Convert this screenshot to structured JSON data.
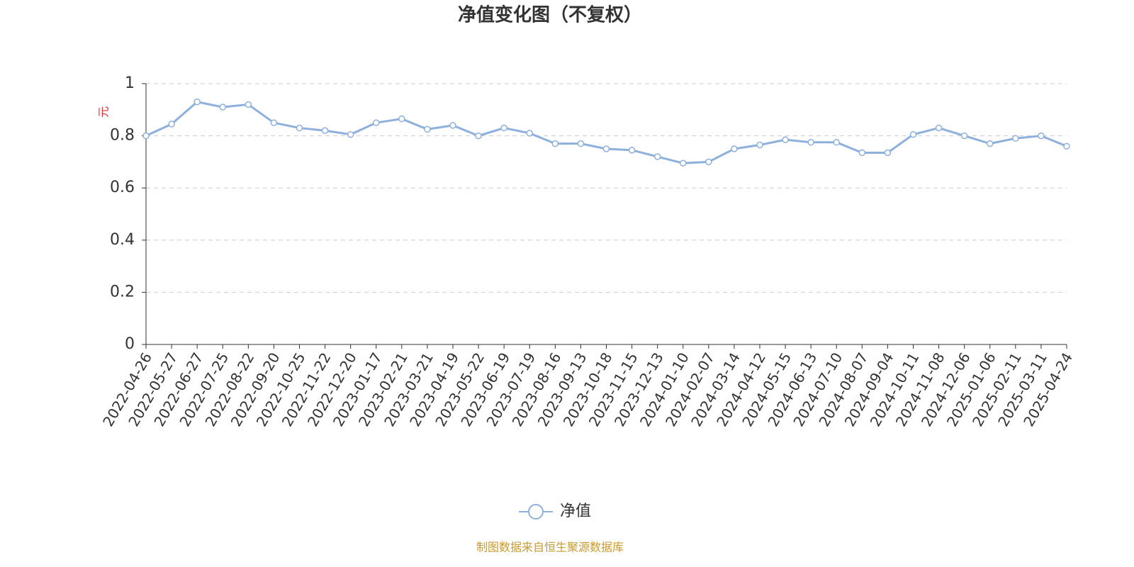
{
  "chart_data": {
    "type": "line",
    "title": "净值变化图（不复权）",
    "y_label": "元",
    "categories": [
      "2022-04-26",
      "2022-05-27",
      "2022-06-27",
      "2022-07-25",
      "2022-08-22",
      "2022-09-20",
      "2022-10-25",
      "2022-11-22",
      "2022-12-20",
      "2023-01-17",
      "2023-02-21",
      "2023-03-21",
      "2023-04-19",
      "2023-05-22",
      "2023-06-19",
      "2023-07-19",
      "2023-08-16",
      "2023-09-13",
      "2023-10-18",
      "2023-11-15",
      "2023-12-13",
      "2024-01-10",
      "2024-02-07",
      "2024-03-14",
      "2024-04-12",
      "2024-05-15",
      "2024-06-13",
      "2024-07-10",
      "2024-08-07",
      "2024-09-04",
      "2024-10-11",
      "2024-11-08",
      "2024-12-06",
      "2025-01-06",
      "2025-02-11",
      "2025-03-11",
      "2025-04-24"
    ],
    "series": [
      {
        "name": "净值",
        "color": "#8eb0dc",
        "values": [
          0.8,
          0.845,
          0.93,
          0.91,
          0.92,
          0.85,
          0.83,
          0.82,
          0.805,
          0.85,
          0.865,
          0.825,
          0.84,
          0.8,
          0.83,
          0.81,
          0.77,
          0.77,
          0.75,
          0.745,
          0.72,
          0.695,
          0.7,
          0.75,
          0.765,
          0.785,
          0.775,
          0.775,
          0.735,
          0.735,
          0.805,
          0.83,
          0.8,
          0.77,
          0.79,
          0.8,
          0.76
        ]
      }
    ],
    "ylim": [
      0,
      1
    ],
    "yticks": [
      0,
      0.2,
      0.4,
      0.6,
      0.8,
      1
    ],
    "grid": true,
    "source": "制图数据来自恒生聚源数据库"
  }
}
